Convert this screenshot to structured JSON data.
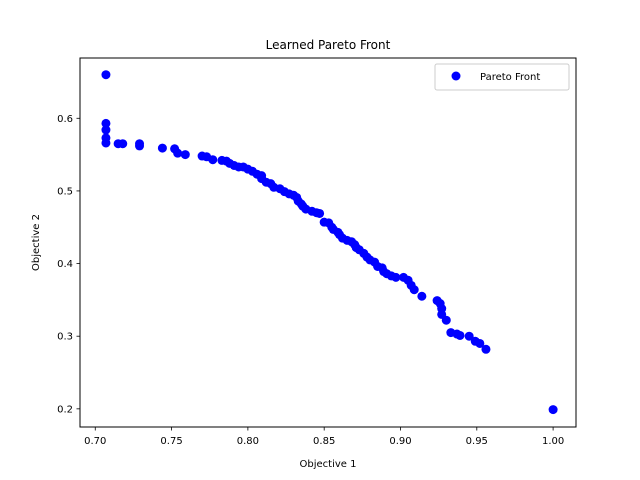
{
  "chart_data": {
    "type": "scatter",
    "title": "Learned Pareto Front",
    "xlabel": "Objective 1",
    "ylabel": "Objective 2",
    "xlim": [
      0.69,
      1.015
    ],
    "ylim": [
      0.175,
      0.683
    ],
    "xticks": [
      0.7,
      0.75,
      0.8,
      0.85,
      0.9,
      0.95,
      1.0
    ],
    "xtick_labels": [
      "0.70",
      "0.75",
      "0.80",
      "0.85",
      "0.90",
      "0.95",
      "1.00"
    ],
    "yticks": [
      0.2,
      0.3,
      0.4,
      0.5,
      0.6
    ],
    "ytick_labels": [
      "0.2",
      "0.3",
      "0.4",
      "0.5",
      "0.6"
    ],
    "grid": false,
    "legend_position": "top-right",
    "series": [
      {
        "name": "Pareto Front",
        "color": "#0000ff",
        "marker": "circle",
        "points": [
          [
            0.707,
            0.66
          ],
          [
            0.707,
            0.593
          ],
          [
            0.707,
            0.584
          ],
          [
            0.707,
            0.573
          ],
          [
            0.707,
            0.566
          ],
          [
            0.715,
            0.565
          ],
          [
            0.718,
            0.565
          ],
          [
            0.729,
            0.565
          ],
          [
            0.729,
            0.562
          ],
          [
            0.744,
            0.559
          ],
          [
            0.752,
            0.558
          ],
          [
            0.754,
            0.552
          ],
          [
            0.759,
            0.55
          ],
          [
            0.77,
            0.548
          ],
          [
            0.773,
            0.547
          ],
          [
            0.777,
            0.543
          ],
          [
            0.783,
            0.542
          ],
          [
            0.786,
            0.541
          ],
          [
            0.788,
            0.538
          ],
          [
            0.791,
            0.535
          ],
          [
            0.794,
            0.533
          ],
          [
            0.797,
            0.533
          ],
          [
            0.8,
            0.53
          ],
          [
            0.803,
            0.527
          ],
          [
            0.806,
            0.523
          ],
          [
            0.809,
            0.521
          ],
          [
            0.809,
            0.517
          ],
          [
            0.812,
            0.512
          ],
          [
            0.815,
            0.51
          ],
          [
            0.817,
            0.505
          ],
          [
            0.821,
            0.503
          ],
          [
            0.824,
            0.499
          ],
          [
            0.827,
            0.496
          ],
          [
            0.83,
            0.494
          ],
          [
            0.832,
            0.491
          ],
          [
            0.833,
            0.486
          ],
          [
            0.835,
            0.482
          ],
          [
            0.836,
            0.479
          ],
          [
            0.838,
            0.475
          ],
          [
            0.842,
            0.472
          ],
          [
            0.845,
            0.47
          ],
          [
            0.847,
            0.469
          ],
          [
            0.85,
            0.457
          ],
          [
            0.853,
            0.456
          ],
          [
            0.855,
            0.45
          ],
          [
            0.856,
            0.447
          ],
          [
            0.859,
            0.443
          ],
          [
            0.86,
            0.44
          ],
          [
            0.862,
            0.435
          ],
          [
            0.865,
            0.432
          ],
          [
            0.868,
            0.43
          ],
          [
            0.87,
            0.426
          ],
          [
            0.871,
            0.422
          ],
          [
            0.873,
            0.419
          ],
          [
            0.876,
            0.414
          ],
          [
            0.878,
            0.409
          ],
          [
            0.88,
            0.405
          ],
          [
            0.883,
            0.402
          ],
          [
            0.885,
            0.396
          ],
          [
            0.888,
            0.394
          ],
          [
            0.889,
            0.389
          ],
          [
            0.891,
            0.386
          ],
          [
            0.894,
            0.383
          ],
          [
            0.897,
            0.381
          ],
          [
            0.902,
            0.381
          ],
          [
            0.905,
            0.377
          ],
          [
            0.907,
            0.37
          ],
          [
            0.909,
            0.364
          ],
          [
            0.914,
            0.355
          ],
          [
            0.924,
            0.349
          ],
          [
            0.926,
            0.345
          ],
          [
            0.927,
            0.338
          ],
          [
            0.927,
            0.33
          ],
          [
            0.93,
            0.322
          ],
          [
            0.933,
            0.305
          ],
          [
            0.937,
            0.303
          ],
          [
            0.939,
            0.301
          ],
          [
            0.945,
            0.3
          ],
          [
            0.949,
            0.293
          ],
          [
            0.952,
            0.29
          ],
          [
            0.956,
            0.282
          ],
          [
            1.0,
            0.199
          ]
        ]
      }
    ]
  }
}
